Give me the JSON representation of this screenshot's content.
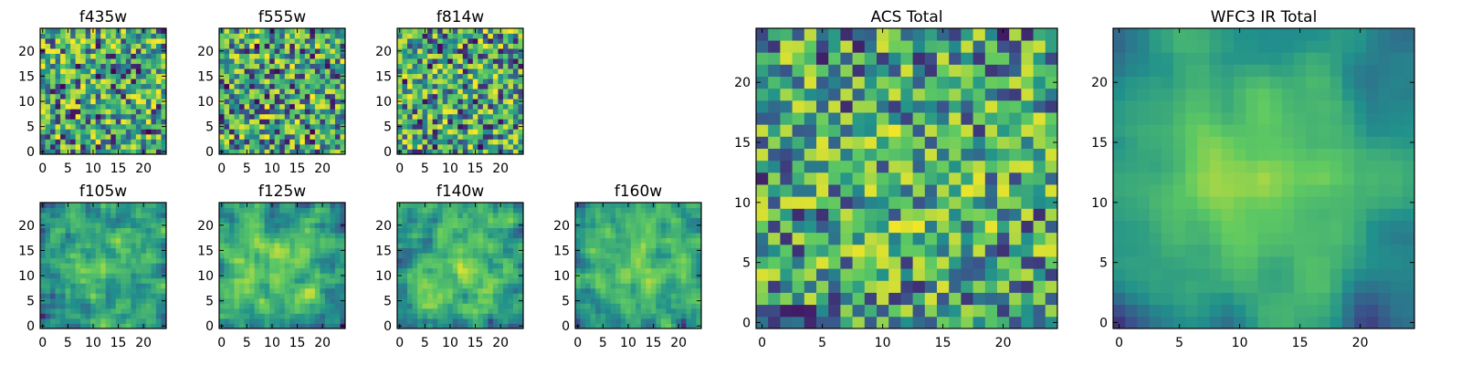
{
  "chart_data": [
    {
      "type": "heatmap",
      "title": "f435w",
      "xticks": [
        0,
        5,
        10,
        15,
        20
      ],
      "yticks": [
        0,
        5,
        10,
        15,
        20
      ],
      "grid_size": 25,
      "seed": 11,
      "smooth": 0,
      "radial": 0.0,
      "xlim": [
        -0.5,
        24.5
      ],
      "ylim": [
        -0.5,
        24.5
      ]
    },
    {
      "type": "heatmap",
      "title": "f555w",
      "xticks": [
        0,
        5,
        10,
        15,
        20
      ],
      "yticks": [
        0,
        5,
        10,
        15,
        20
      ],
      "grid_size": 25,
      "seed": 23,
      "smooth": 0,
      "radial": 0.0,
      "xlim": [
        -0.5,
        24.5
      ],
      "ylim": [
        -0.5,
        24.5
      ]
    },
    {
      "type": "heatmap",
      "title": "f814w",
      "xticks": [
        0,
        5,
        10,
        15,
        20
      ],
      "yticks": [
        0,
        5,
        10,
        15,
        20
      ],
      "grid_size": 25,
      "seed": 37,
      "smooth": 0,
      "radial": 0.0,
      "xlim": [
        -0.5,
        24.5
      ],
      "ylim": [
        -0.5,
        24.5
      ]
    },
    {
      "type": "heatmap",
      "title": "f105w",
      "xticks": [
        0,
        5,
        10,
        15,
        20
      ],
      "yticks": [
        0,
        5,
        10,
        15,
        20
      ],
      "grid_size": 25,
      "seed": 41,
      "smooth": 1,
      "radial": 0.35,
      "xlim": [
        -0.5,
        24.5
      ],
      "ylim": [
        -0.5,
        24.5
      ]
    },
    {
      "type": "heatmap",
      "title": "f125w",
      "xticks": [
        0,
        5,
        10,
        15,
        20
      ],
      "yticks": [
        0,
        5,
        10,
        15,
        20
      ],
      "grid_size": 25,
      "seed": 53,
      "smooth": 1,
      "radial": 0.3,
      "xlim": [
        -0.5,
        24.5
      ],
      "ylim": [
        -0.5,
        24.5
      ]
    },
    {
      "type": "heatmap",
      "title": "f140w",
      "xticks": [
        0,
        5,
        10,
        15,
        20
      ],
      "yticks": [
        0,
        5,
        10,
        15,
        20
      ],
      "grid_size": 25,
      "seed": 67,
      "smooth": 1,
      "radial": 0.35,
      "xlim": [
        -0.5,
        24.5
      ],
      "ylim": [
        -0.5,
        24.5
      ]
    },
    {
      "type": "heatmap",
      "title": "f160w",
      "xticks": [
        0,
        5,
        10,
        15,
        20
      ],
      "yticks": [
        0,
        5,
        10,
        15,
        20
      ],
      "grid_size": 25,
      "seed": 79,
      "smooth": 1,
      "radial": 0.4,
      "xlim": [
        -0.5,
        24.5
      ],
      "ylim": [
        -0.5,
        24.5
      ]
    },
    {
      "type": "heatmap",
      "title": "ACS Total",
      "xticks": [
        0,
        5,
        10,
        15,
        20
      ],
      "yticks": [
        0,
        5,
        10,
        15,
        20
      ],
      "grid_size": 25,
      "seed": 97,
      "smooth": 0,
      "radial": 0.1,
      "xlim": [
        -0.5,
        24.5
      ],
      "ylim": [
        -0.5,
        24.5
      ]
    },
    {
      "type": "heatmap",
      "title": "WFC3 IR Total",
      "xticks": [
        0,
        5,
        10,
        15,
        20
      ],
      "yticks": [
        0,
        5,
        10,
        15,
        20
      ],
      "grid_size": 25,
      "seed": 131,
      "smooth": 2,
      "radial": 0.6,
      "xlim": [
        -0.5,
        24.5
      ],
      "ylim": [
        -0.5,
        24.5
      ]
    }
  ],
  "colormap": [
    "#440154",
    "#3b528b",
    "#21918c",
    "#5ec962",
    "#fde725"
  ],
  "colors": {
    "axis": "#000000",
    "background": "#ffffff"
  }
}
